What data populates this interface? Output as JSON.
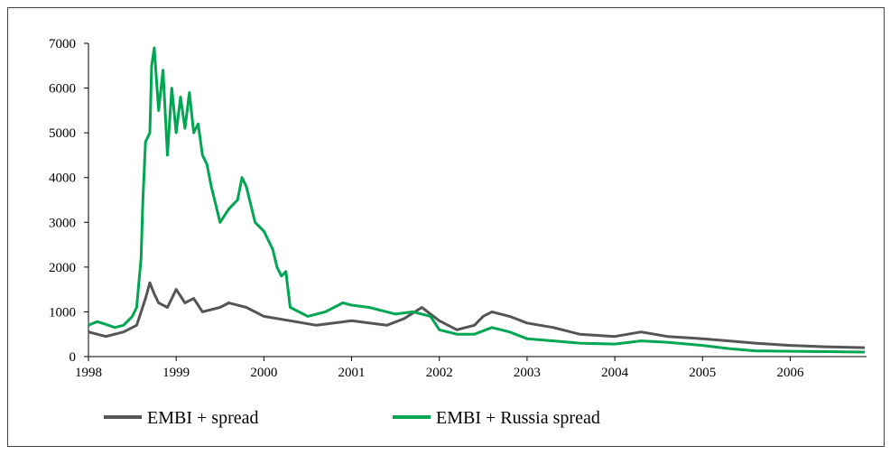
{
  "chart_data": {
    "type": "line",
    "series": [
      {
        "name": "EMBI + spread",
        "color": "#555555",
        "x": [
          1998.0,
          1998.2,
          1998.4,
          1998.55,
          1998.65,
          1998.7,
          1998.75,
          1998.8,
          1998.9,
          1999.0,
          1999.1,
          1999.2,
          1999.3,
          1999.5,
          1999.6,
          1999.8,
          2000.0,
          2000.3,
          2000.6,
          2000.8,
          2001.0,
          2001.2,
          2001.4,
          2001.6,
          2001.8,
          2002.0,
          2002.2,
          2002.4,
          2002.5,
          2002.6,
          2002.8,
          2003.0,
          2003.3,
          2003.6,
          2004.0,
          2004.3,
          2004.6,
          2005.0,
          2005.3,
          2005.6,
          2006.0,
          2006.4,
          2006.85
        ],
        "values": [
          550,
          450,
          550,
          700,
          1300,
          1650,
          1400,
          1200,
          1100,
          1500,
          1200,
          1300,
          1000,
          1100,
          1200,
          1100,
          900,
          800,
          700,
          750,
          800,
          750,
          700,
          850,
          1100,
          800,
          600,
          700,
          900,
          1000,
          900,
          750,
          650,
          500,
          450,
          550,
          450,
          400,
          350,
          300,
          250,
          220,
          200
        ]
      },
      {
        "name": "EMBI + Russia spread",
        "color": "#00a651",
        "x": [
          1998.0,
          1998.1,
          1998.2,
          1998.3,
          1998.4,
          1998.5,
          1998.55,
          1998.6,
          1998.62,
          1998.65,
          1998.7,
          1998.72,
          1998.75,
          1998.8,
          1998.85,
          1998.9,
          1998.95,
          1999.0,
          1999.05,
          1999.1,
          1999.15,
          1999.2,
          1999.25,
          1999.3,
          1999.35,
          1999.4,
          1999.5,
          1999.6,
          1999.7,
          1999.75,
          1999.8,
          1999.9,
          2000.0,
          2000.1,
          2000.15,
          2000.2,
          2000.25,
          2000.3,
          2000.4,
          2000.5,
          2000.7,
          2000.9,
          2001.0,
          2001.2,
          2001.4,
          2001.5,
          2001.7,
          2001.9,
          2002.0,
          2002.2,
          2002.4,
          2002.6,
          2002.8,
          2003.0,
          2003.3,
          2003.6,
          2004.0,
          2004.3,
          2004.6,
          2005.0,
          2005.3,
          2005.6,
          2006.0,
          2006.4,
          2006.85
        ],
        "values": [
          700,
          780,
          720,
          650,
          700,
          900,
          1100,
          2200,
          3500,
          4800,
          5000,
          6500,
          6900,
          5500,
          6400,
          4500,
          6000,
          5000,
          5800,
          5100,
          5900,
          5000,
          5200,
          4500,
          4300,
          3800,
          3000,
          3300,
          3500,
          4000,
          3800,
          3000,
          2800,
          2400,
          2000,
          1800,
          1900,
          1100,
          1000,
          900,
          1000,
          1200,
          1150,
          1100,
          1000,
          950,
          1000,
          900,
          600,
          500,
          500,
          650,
          550,
          400,
          350,
          300,
          280,
          350,
          320,
          250,
          180,
          130,
          120,
          110,
          100
        ]
      }
    ],
    "xlim": [
      1998,
      2006.87
    ],
    "xticks": [
      1998,
      1999,
      2000,
      2001,
      2002,
      2003,
      2004,
      2005,
      2006
    ],
    "ylim": [
      0,
      7000
    ],
    "yticks": [
      0,
      1000,
      2000,
      3000,
      4000,
      5000,
      6000,
      7000
    ]
  }
}
